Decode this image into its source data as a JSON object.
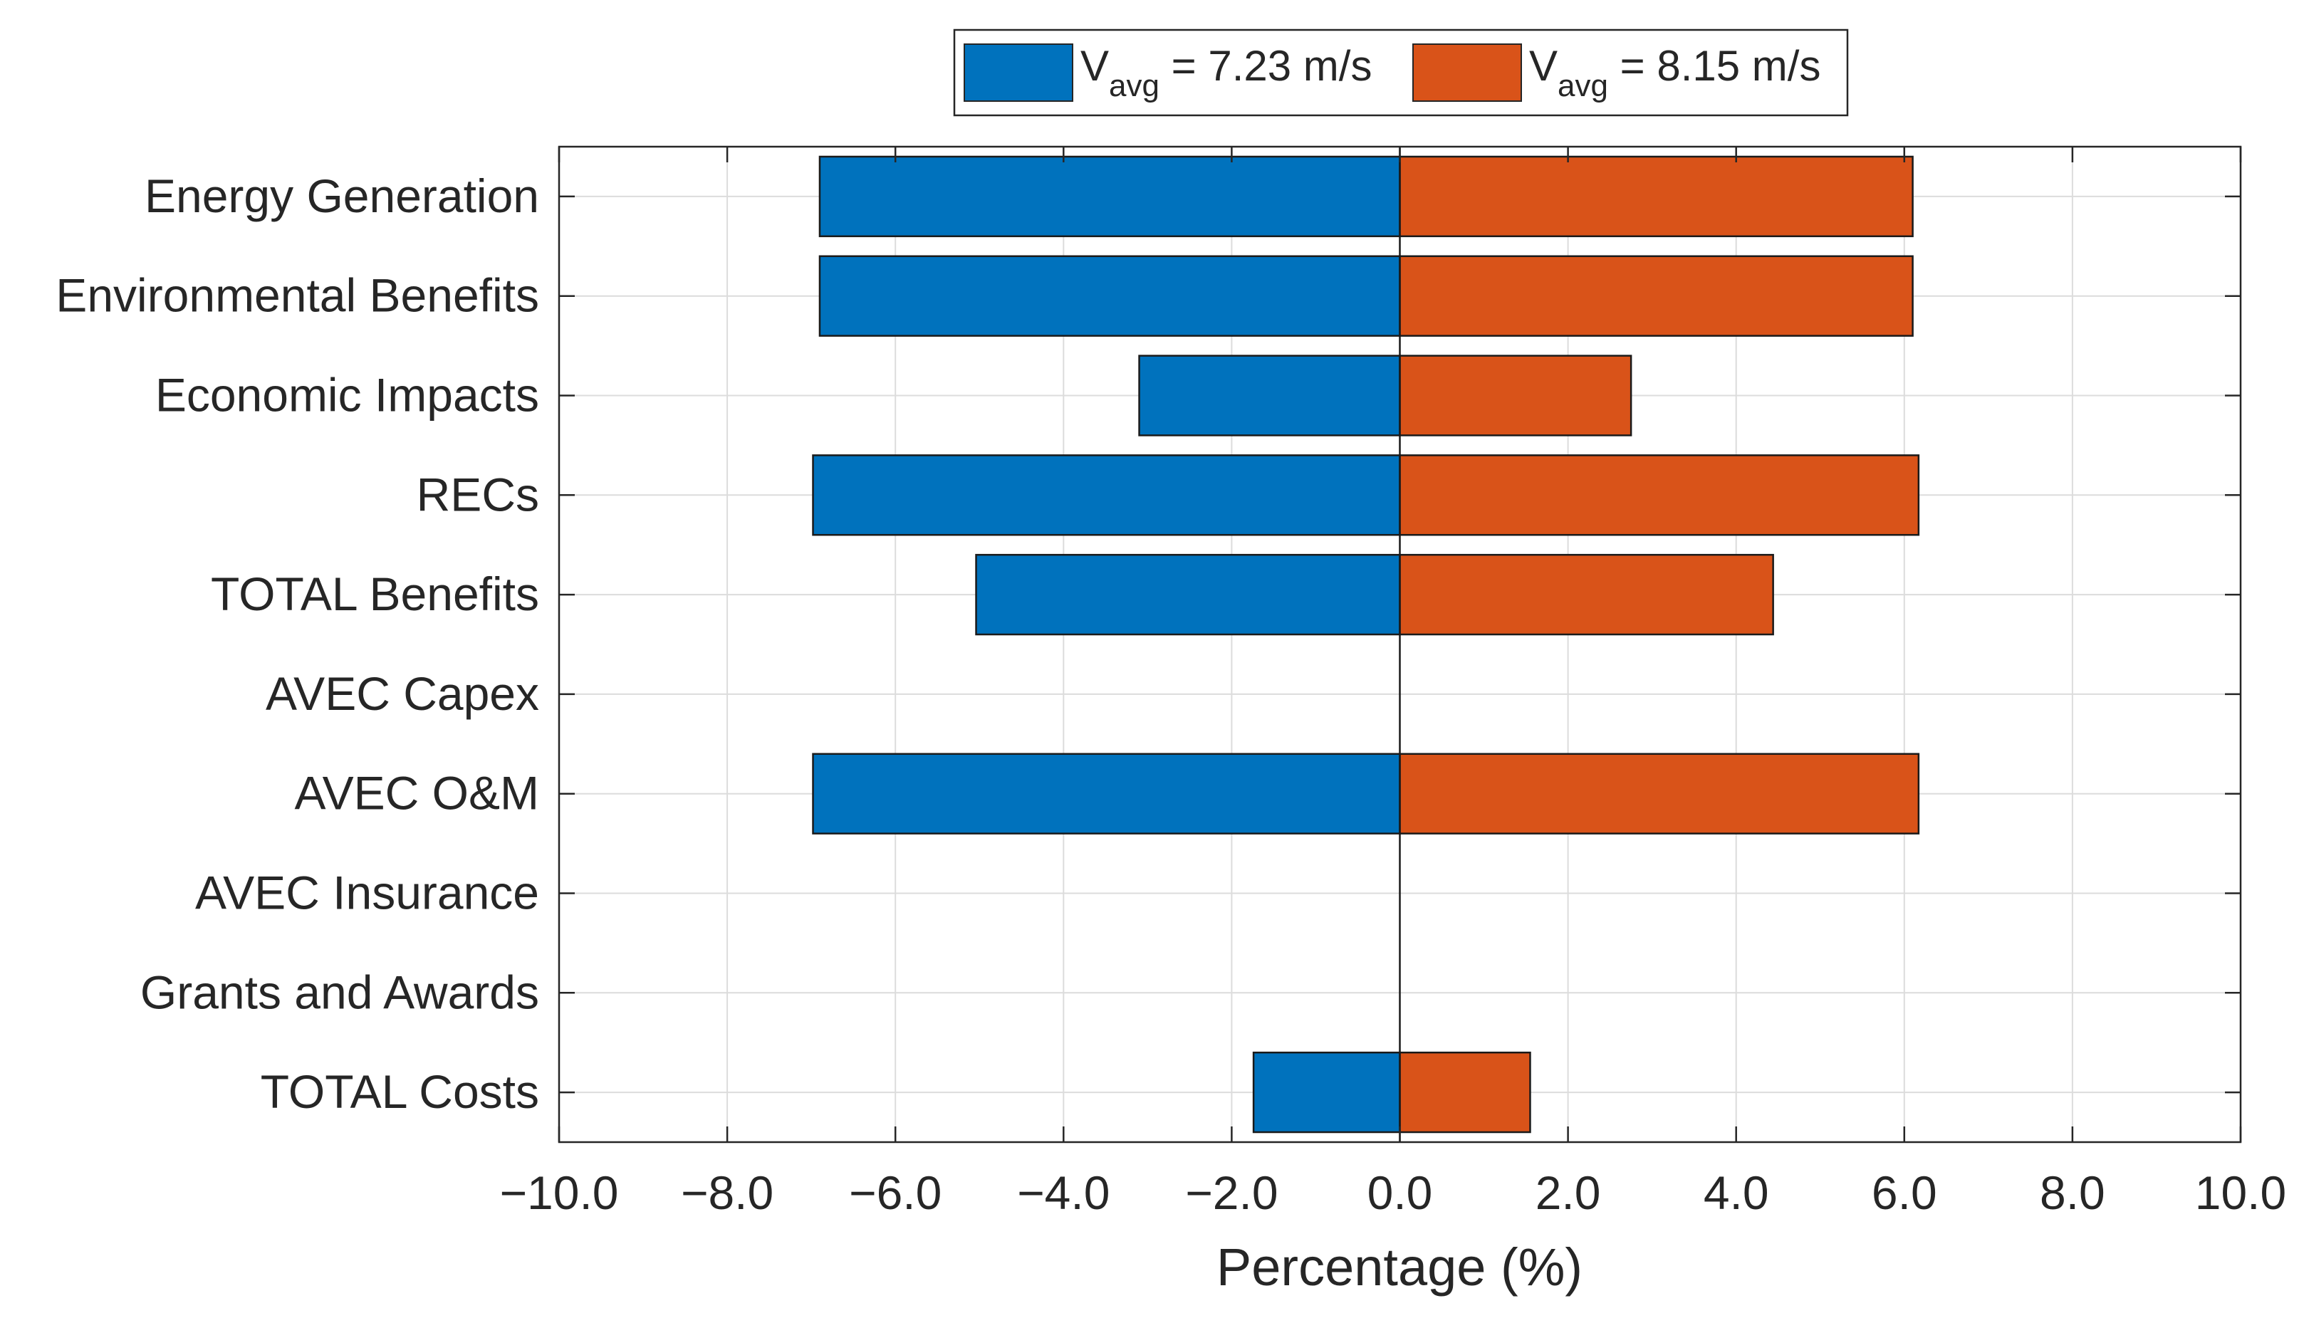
{
  "chart_data": {
    "type": "bar",
    "orientation": "horizontal",
    "title": "",
    "xlabel": "Percentage (%)",
    "ylabel": "",
    "xlim": [
      -10,
      10
    ],
    "xticks": [
      -10,
      -8,
      -6,
      -4,
      -2,
      0,
      2,
      4,
      6,
      8,
      10
    ],
    "xtick_labels": [
      "−10.0",
      "−8.0",
      "−6.0",
      "−4.0",
      "−2.0",
      "0.0",
      "2.0",
      "4.0",
      "6.0",
      "8.0",
      "10.0"
    ],
    "grid": true,
    "legend_position": "top-center, outside axes",
    "categories": [
      "Energy Generation",
      "Environmental Benefits",
      "Economic Impacts",
      "RECs",
      "TOTAL Benefits",
      "AVEC Capex",
      "AVEC O&M",
      "AVEC Insurance",
      "Grants and Awards",
      "TOTAL Costs"
    ],
    "series": [
      {
        "name": "V_avg = 7.23 m/s",
        "legend_main": "V",
        "legend_sub": "avg",
        "legend_rest": " = 7.23 m/s",
        "color": "#0072BD",
        "values": [
          -6.9,
          -6.9,
          -3.1,
          -6.98,
          -5.04,
          0,
          -6.98,
          0,
          0,
          -1.74
        ]
      },
      {
        "name": "V_avg = 8.15 m/s",
        "legend_main": "V",
        "legend_sub": "avg",
        "legend_rest": " = 8.15 m/s",
        "color": "#D95319",
        "values": [
          6.1,
          6.1,
          2.75,
          6.17,
          4.44,
          0,
          6.17,
          0,
          0,
          1.55
        ]
      }
    ]
  }
}
